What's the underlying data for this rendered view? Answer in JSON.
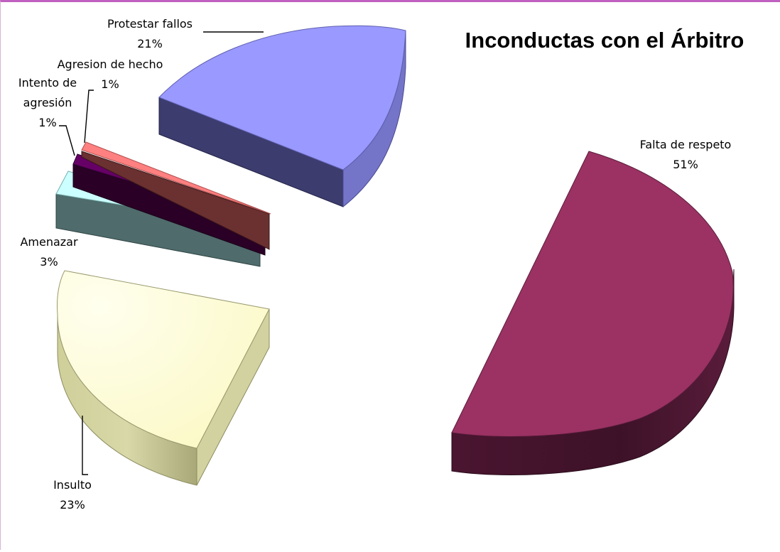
{
  "chart_data": {
    "type": "pie",
    "style": "3d-exploded",
    "title": "Inconductas con el Árbitro",
    "slices": [
      {
        "label": "Falta de respeto",
        "percent_label": "51%",
        "value": 51,
        "color": "#9b3263"
      },
      {
        "label": "Insulto",
        "percent_label": "23%",
        "value": 23,
        "color": "#ffffcc"
      },
      {
        "label": "Amenazar",
        "percent_label": "3%",
        "value": 3,
        "color": "#ccffff"
      },
      {
        "label": "Intento de",
        "label2": "agresión",
        "percent_label": "1%",
        "value": 1,
        "color": "#660066"
      },
      {
        "label": "Agresion de hecho",
        "percent_label": "1%",
        "value": 1,
        "color": "#ff8080"
      },
      {
        "label": "Protestar fallos",
        "percent_label": "21%",
        "value": 21,
        "color": "#9999ff"
      }
    ],
    "legend": "none"
  }
}
